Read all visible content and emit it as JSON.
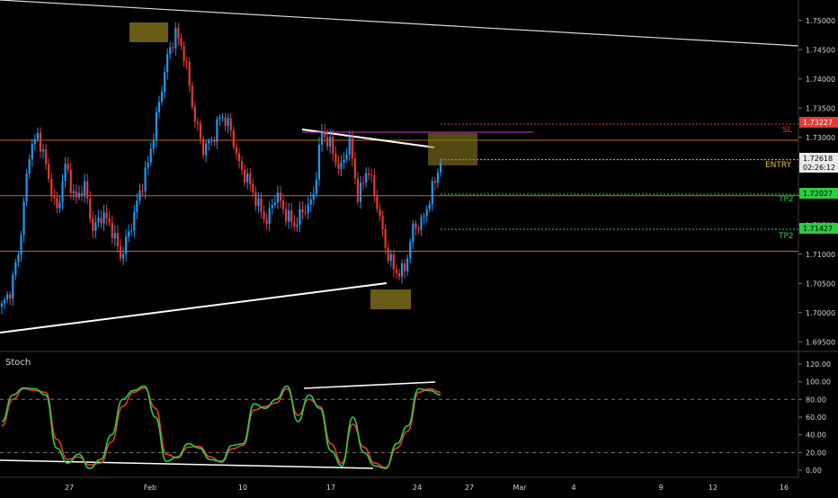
{
  "theme": {
    "background": "#000000",
    "bull": "#2196f3",
    "bear": "#e53935",
    "grid_text": "#d1d4dc",
    "trendline": "#ffffff",
    "zone": "#8a7a1e",
    "level_orange": "#c66a1a",
    "sl_color": "#e53935",
    "entry_color": "#e6c229",
    "tp_color": "#2ecc40",
    "stoch_k": "#2ecc40",
    "stoch_d": "#e53935"
  },
  "price_axis": {
    "ticks": [
      "1.75000",
      "1.74500",
      "1.74000",
      "1.73500",
      "1.73000",
      "1.72500",
      "1.72000",
      "1.71500",
      "1.71000",
      "1.70500",
      "1.70000",
      "1.69500"
    ]
  },
  "stoch_axis": {
    "ticks": [
      "120.00",
      "100.00",
      "80.00",
      "60.00",
      "40.00",
      "20.00",
      "0.00"
    ]
  },
  "x_axis": {
    "ticks": [
      "27",
      "Feb",
      "10",
      "17",
      "24",
      "27",
      "Mar",
      "4",
      "9",
      "12",
      "16"
    ]
  },
  "stoch_panel": {
    "label": "Stoch"
  },
  "price_labels": {
    "sl_value": "1.73227",
    "last_value": "1.72618",
    "countdown": "02:26:12",
    "tp_upper_value": "1.72027",
    "tp_lower_value": "1.71427"
  },
  "level_labels": {
    "sl": "SL",
    "entry": "ENTRY",
    "tp_upper": "TP2",
    "tp_lower": "TP2"
  },
  "chart_data": [
    {
      "type": "candlestick",
      "title": "",
      "y_unit": "price",
      "ylim": [
        1.6935,
        1.7535
      ],
      "grid": false,
      "x_ticks": [
        "27",
        "Feb",
        "10",
        "17",
        "24",
        "27",
        "Mar",
        "4",
        "9",
        "12",
        "16"
      ],
      "close_path": [
        1.701,
        1.704,
        1.712,
        1.7275,
        1.7305,
        1.724,
        1.717,
        1.7255,
        1.719,
        1.722,
        1.714,
        1.717,
        1.7145,
        1.7095,
        1.714,
        1.72,
        1.7255,
        1.734,
        1.743,
        1.748,
        1.744,
        1.734,
        1.728,
        1.7295,
        1.734,
        1.7315,
        1.725,
        1.7225,
        1.7185,
        1.7155,
        1.7205,
        1.717,
        1.715,
        1.7175,
        1.719,
        1.731,
        1.7285,
        1.724,
        1.7295,
        1.7195,
        1.725,
        1.719,
        1.711,
        1.707,
        1.707,
        1.7145,
        1.7155,
        1.7205,
        1.726
      ],
      "levels": {
        "sl": 1.73227,
        "entry": 1.72618,
        "tp_upper": 1.72027,
        "tp_lower": 1.71427,
        "resistance": 1.7295,
        "support_upper": 1.72,
        "support_lower": 1.7105
      },
      "highs_marked": [
        1.748,
        1.731
      ],
      "lows_marked": [
        1.7025
      ]
    },
    {
      "type": "line",
      "title": "Stoch",
      "ylim": [
        -5,
        125
      ],
      "reference_lines": [
        80,
        20
      ],
      "series": [
        {
          "values": [
            55,
            85,
            93,
            92,
            85,
            25,
            8,
            18,
            2,
            12,
            40,
            80,
            90,
            95,
            60,
            10,
            15,
            30,
            25,
            12,
            10,
            28,
            30,
            75,
            70,
            80,
            95,
            55,
            85,
            70,
            22,
            5,
            60,
            20,
            5,
            2,
            30,
            50,
            92,
            90,
            85
          ]
        },
        {
          "values": [
            50,
            80,
            92,
            90,
            88,
            35,
            12,
            15,
            6,
            8,
            32,
            72,
            88,
            93,
            70,
            18,
            14,
            26,
            27,
            15,
            9,
            24,
            28,
            68,
            72,
            76,
            92,
            62,
            80,
            72,
            30,
            8,
            52,
            26,
            8,
            3,
            25,
            44,
            88,
            92,
            88
          ]
        }
      ]
    }
  ]
}
